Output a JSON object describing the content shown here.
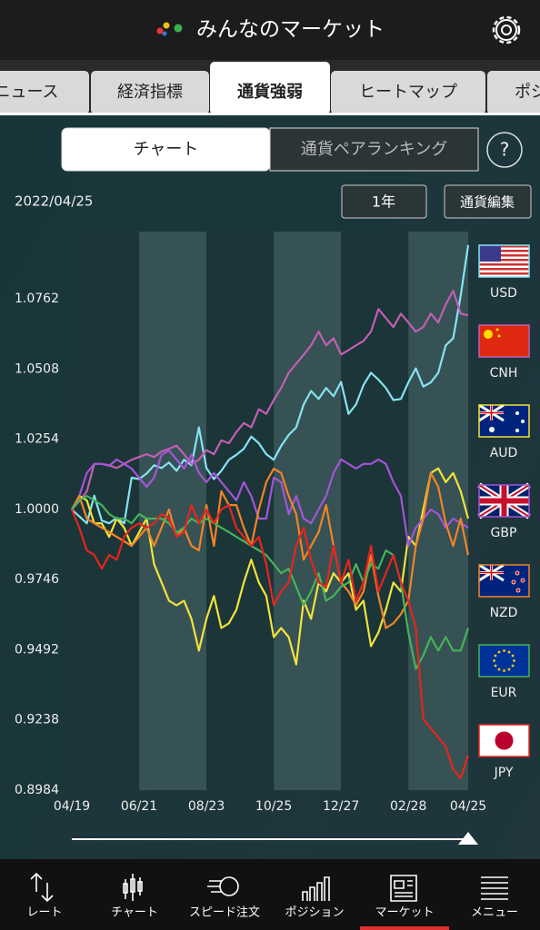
{
  "header": {
    "title": "みんなのマーケット"
  },
  "tabs": {
    "items": [
      "ニュース",
      "経済指標",
      "通貨強弱",
      "ヒートマップ",
      "ポジ"
    ],
    "active": 2
  },
  "segments": {
    "items": [
      "チャート",
      "通貨ペアランキング"
    ],
    "active": 0
  },
  "help": "?",
  "date": "2022/04/25",
  "period_button": "1年",
  "edit_button": "通貨編集",
  "nav": {
    "items": [
      "レート",
      "チャート",
      "スピード注文",
      "ポジション",
      "マーケット",
      "メニュー"
    ],
    "active": 4
  },
  "chart_data": {
    "type": "line",
    "categories": [
      "04/19",
      null,
      null,
      null,
      null,
      null,
      null,
      null,
      null,
      "06/21",
      null,
      null,
      null,
      null,
      null,
      null,
      null,
      null,
      "08/23",
      null,
      null,
      null,
      null,
      null,
      null,
      null,
      null,
      "10/25",
      null,
      null,
      null,
      null,
      null,
      null,
      null,
      null,
      "12/27",
      null,
      null,
      null,
      null,
      null,
      null,
      null,
      null,
      "02/28",
      null,
      null,
      null,
      null,
      null,
      null,
      null,
      "04/25"
    ],
    "ylim": [
      0.8984,
      1.1006
    ],
    "yticks": [
      0.8984,
      0.9238,
      0.9492,
      0.9746,
      {
        "value": 1,
        "label": "1.0000"
      },
      1.0254,
      1.0508,
      1.0762
    ],
    "grid": false,
    "legend": "right",
    "series": [
      {
        "name": "USD",
        "color": "#86e3f2",
        "values": [
          1.0,
          0.9975,
          0.995,
          1.005,
          0.996,
          0.995,
          0.997,
          0.995,
          1.0115,
          1.011,
          1.013,
          1.016,
          1.015,
          1.017,
          1.014,
          1.018,
          1.016,
          1.0297,
          1.015,
          1.011,
          1.014,
          1.018,
          1.0198,
          1.022,
          1.0264,
          1.024,
          1.02,
          1.018,
          1.023,
          1.027,
          1.0297,
          1.038,
          1.0429,
          1.04,
          1.044,
          1.041,
          1.0462,
          1.0346,
          1.038,
          1.045,
          1.0495,
          1.047,
          1.044,
          1.0396,
          1.04,
          1.046,
          1.0511,
          1.0445,
          1.046,
          1.0495,
          1.0594,
          1.062,
          1.0775,
          1.0957
        ]
      },
      {
        "name": "CNH",
        "color": "#c25fb4",
        "values": [
          1.0,
          1.003,
          1.0065,
          1.0165,
          1.0165,
          1.016,
          1.015,
          1.0165,
          1.018,
          1.019,
          1.02,
          1.019,
          1.021,
          1.022,
          1.0231,
          1.02,
          1.0165,
          1.018,
          1.0215,
          1.02,
          1.025,
          1.024,
          1.028,
          1.0313,
          1.0297,
          1.0363,
          1.0346,
          1.0396,
          1.044,
          1.0495,
          1.0528,
          1.056,
          1.0594,
          1.0644,
          1.0594,
          1.062,
          1.0561,
          1.0577,
          1.0594,
          1.061,
          1.0644,
          1.0726,
          1.0693,
          1.066,
          1.0709,
          1.0677,
          1.0644,
          1.066,
          1.0709,
          1.0677,
          1.0742,
          1.0792,
          1.0709,
          1.0703
        ]
      },
      {
        "name": "AUD",
        "color": "#f2e33a",
        "values": [
          1.0,
          1.0049,
          1.0033,
          0.995,
          0.995,
          0.9901,
          0.9967,
          0.9934,
          0.9868,
          0.9917,
          0.9967,
          0.9802,
          0.9736,
          0.967,
          0.9653,
          0.967,
          0.9604,
          0.9489,
          0.9604,
          0.9687,
          0.9571,
          0.9588,
          0.9637,
          0.9736,
          0.9818,
          0.9736,
          0.9687,
          0.9538,
          0.9571,
          0.9538,
          0.9439,
          0.967,
          0.9604,
          0.9736,
          0.9703,
          0.9769,
          0.9736,
          0.9769,
          0.9637,
          0.967,
          0.9505,
          0.9555,
          0.9637,
          0.9736,
          0.9703,
          0.9901,
          0.9868,
          1.0,
          1.0132,
          1.0149,
          1.0099,
          1.0132,
          1.0066,
          0.9967
        ]
      },
      {
        "name": "GBP",
        "color": "#a455d6",
        "values": [
          1.0,
          1.0049,
          1.0132,
          1.0165,
          1.0165,
          1.0158,
          1.0181,
          1.0165,
          1.0148,
          1.0115,
          1.0082,
          1.0115,
          1.0198,
          1.0214,
          1.0181,
          1.0148,
          1.0198,
          1.0132,
          1.0099,
          1.0132,
          1.0099,
          1.0066,
          1.0033,
          1.0099,
          1.0049,
          0.9967,
          0.9967,
          1.0115,
          1.0099,
          0.9983,
          1.0049,
          0.9967,
          0.995,
          1.0,
          1.0049,
          1.0132,
          1.0181,
          1.0165,
          1.0148,
          1.0165,
          1.0165,
          1.0181,
          1.0165,
          1.0099,
          1.0049,
          0.9868,
          0.9934,
          0.9967,
          1.0,
          0.9983,
          0.9934,
          0.9967,
          0.995,
          0.9934
        ]
      },
      {
        "name": "NZD",
        "color": "#f0842a",
        "values": [
          1.0,
          1.0049,
          0.9967,
          0.995,
          0.9934,
          0.9918,
          0.9901,
          0.9885,
          0.9868,
          0.9901,
          0.9934,
          0.9868,
          0.9934,
          1.0,
          0.9901,
          0.9934,
          0.9868,
          0.9852,
          1.0016,
          0.9868,
          1.0066,
          1.0016,
          1.0016,
          0.9934,
          0.9868,
          1.0,
          1.0099,
          1.0148,
          1.0132,
          1.0049,
          0.9983,
          0.9818,
          0.9868,
          0.9918,
          1.0016,
          0.9868,
          0.9736,
          0.9703,
          0.9654,
          0.9703,
          0.9835,
          0.9687,
          0.9571,
          0.9588,
          0.9621,
          0.967,
          0.9868,
          0.9967,
          1.0132,
          1.0082,
          0.995,
          0.9868,
          0.9967,
          0.9835
        ]
      },
      {
        "name": "EUR",
        "color": "#47b35a",
        "values": [
          1.0,
          1.0033,
          1.0049,
          1.0033,
          1.0016,
          0.9983,
          0.9967,
          0.9967,
          0.995,
          0.9983,
          0.9967,
          0.9967,
          0.9967,
          0.995,
          0.9917,
          0.9934,
          0.9967,
          0.995,
          0.9967,
          0.995,
          0.9934,
          0.9918,
          0.9901,
          0.9885,
          0.9868,
          0.9852,
          0.9835,
          0.9802,
          0.9769,
          0.9786,
          0.972,
          0.9654,
          0.9703,
          0.9769,
          0.967,
          0.9687,
          0.972,
          0.9736,
          0.9802,
          0.9736,
          0.9802,
          0.9786,
          0.9852,
          0.9835,
          0.9736,
          0.9555,
          0.9423,
          0.9472,
          0.9538,
          0.9489,
          0.9538,
          0.9489,
          0.9489,
          0.9571
        ]
      },
      {
        "name": "JPY",
        "color": "#e3261f",
        "values": [
          1.0,
          0.9934,
          0.9852,
          0.9835,
          0.9786,
          0.9835,
          0.9818,
          0.9901,
          0.9934,
          0.995,
          0.9934,
          0.995,
          0.9983,
          0.9967,
          0.9901,
          0.9918,
          1.0016,
          0.995,
          1.0,
          0.995,
          1.0,
          1.0016,
          0.9934,
          0.9901,
          0.9868,
          0.9901,
          0.9802,
          0.9654,
          0.9703,
          0.9736,
          0.9868,
          0.9934,
          0.9818,
          0.9736,
          0.972,
          0.9868,
          0.9736,
          0.9818,
          0.967,
          0.9736,
          0.9868,
          0.9703,
          0.9769,
          0.9835,
          0.9736,
          0.967,
          0.9571,
          0.9241,
          0.9208,
          0.9175,
          0.9142,
          0.906,
          0.9027,
          0.9109
        ]
      }
    ]
  }
}
